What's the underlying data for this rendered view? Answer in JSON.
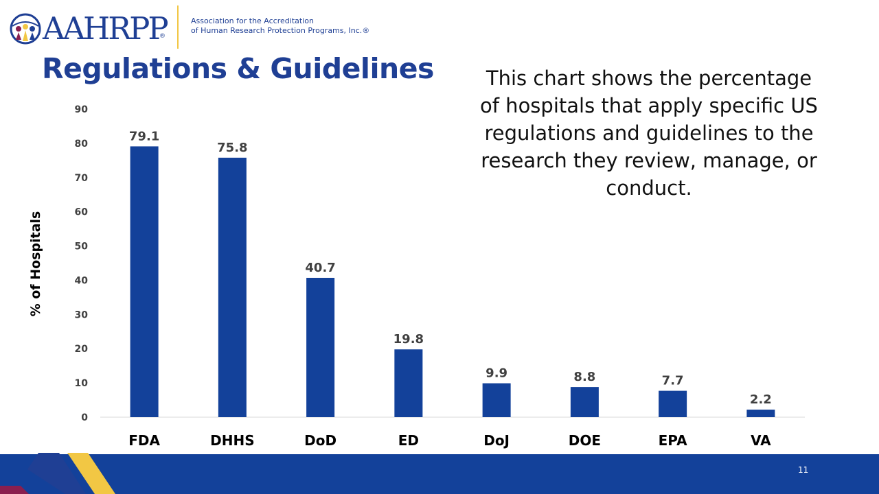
{
  "logo": {
    "wordmark": "AAHRPP",
    "registered": "®",
    "subtitle_line1": "Association for the Accreditation",
    "subtitle_line2": "of Human Research Protection Programs, Inc.®"
  },
  "slide": {
    "title": "Regulations & Guidelines",
    "description": "This chart shows the percentage of hospitals that apply specific US regulations and guidelines to the research they review, manage, or conduct.",
    "page_number": "11"
  },
  "colors": {
    "bar": "#13419a",
    "brand_blue": "#1f3f94",
    "gold": "#f2c744",
    "maroon": "#8a1f4f"
  },
  "chart_data": {
    "type": "bar",
    "title": "",
    "xlabel": "",
    "ylabel": "% of Hospitals",
    "categories": [
      "FDA",
      "DHHS",
      "DoD",
      "ED",
      "DoJ",
      "DOE",
      "EPA",
      "VA"
    ],
    "values": [
      79.1,
      75.8,
      40.7,
      19.8,
      9.9,
      8.8,
      7.7,
      2.2
    ],
    "value_labels": [
      "79.1",
      "75.8",
      "40.7",
      "19.8",
      "9.9",
      "8.8",
      "7.7",
      "2.2"
    ],
    "ylim": [
      0,
      90
    ],
    "yticks": [
      0,
      10,
      20,
      30,
      40,
      50,
      60,
      70,
      80,
      90
    ],
    "ytick_labels": [
      "0",
      "10",
      "20",
      "30",
      "40",
      "50",
      "60",
      "70",
      "80",
      "90"
    ],
    "grid": false,
    "legend": "none"
  }
}
